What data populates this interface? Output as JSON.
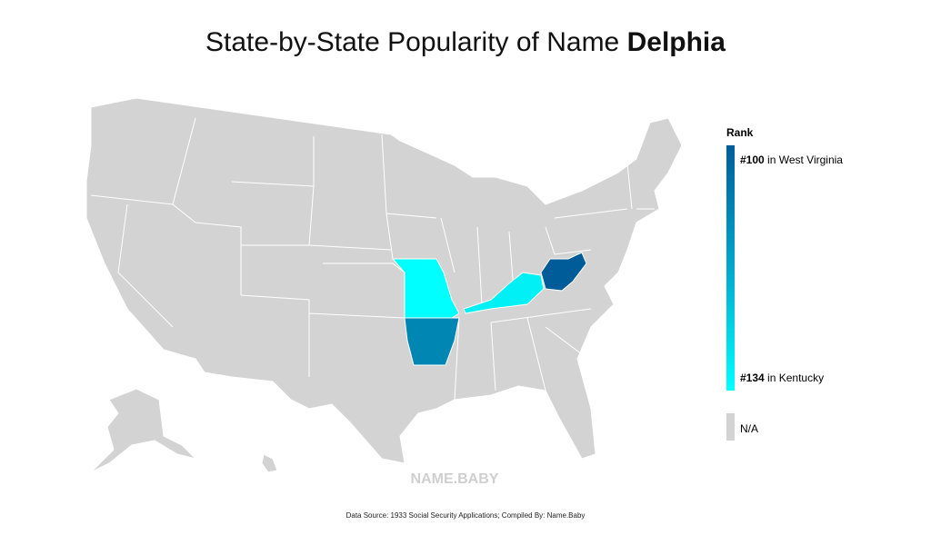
{
  "header": {
    "title": "State-by-State Popularity of Name",
    "name": "Delphia"
  },
  "legend": {
    "title": "Rank",
    "high": {
      "rank": "#100",
      "text": "in West Virginia"
    },
    "low": {
      "rank": "#134",
      "text": "in Kentucky"
    },
    "na": "N/A"
  },
  "watermark": "NAME.BABY",
  "footer": "Data Source: 1933 Social Security Applications; Compiled By: Name.Baby"
}
